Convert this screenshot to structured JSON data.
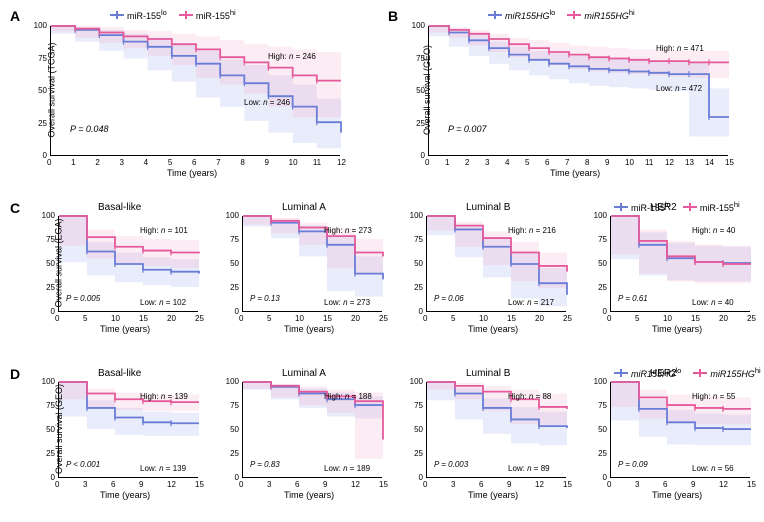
{
  "colors": {
    "lo": "#6a7dd6",
    "hi": "#e55a9b",
    "axis": "#000",
    "lo_ci": "#9aa8e8",
    "hi_ci": "#f2a7c8"
  },
  "legend": {
    "mir155_lo": "miR-155",
    "mir155_hi": "miR-155",
    "hg_lo": "miR155HG",
    "hg_hi": "miR155HG",
    "sup_lo": "lo",
    "sup_hi": "hi"
  },
  "A": {
    "label": "A",
    "ylabel": "Overall survival (TCGA)",
    "xlabel": "Time (years)",
    "p": "P = 0.048",
    "high": "High: n = 246",
    "low": "Low: n = 246",
    "xmax": 12,
    "xticks": [
      0,
      1,
      2,
      3,
      4,
      5,
      6,
      7,
      8,
      9,
      10,
      11,
      12
    ],
    "hi_y": [
      100,
      98,
      95,
      92,
      90,
      86,
      82,
      76,
      72,
      68,
      62,
      58,
      58
    ],
    "hi_u": [
      100,
      100,
      99,
      97,
      96,
      94,
      92,
      89,
      86,
      84,
      82,
      80,
      80
    ],
    "hi_l": [
      100,
      96,
      91,
      87,
      83,
      77,
      70,
      60,
      55,
      48,
      38,
      30,
      30
    ],
    "lo_y": [
      100,
      97,
      93,
      88,
      84,
      77,
      71,
      62,
      56,
      46,
      38,
      26,
      18
    ],
    "lo_u": [
      100,
      99,
      97,
      94,
      91,
      86,
      81,
      74,
      70,
      62,
      55,
      44,
      38
    ],
    "lo_l": [
      100,
      94,
      88,
      81,
      75,
      66,
      57,
      45,
      38,
      27,
      18,
      10,
      6
    ]
  },
  "B": {
    "label": "B",
    "ylabel": "Overall survival (GEO)",
    "xlabel": "Time (years)",
    "p": "P = 0.007",
    "high": "High: n = 471",
    "low": "Low: n = 472",
    "xmax": 15,
    "xticks": [
      0,
      1,
      2,
      3,
      4,
      5,
      6,
      7,
      8,
      9,
      10,
      11,
      12,
      13,
      14,
      15
    ],
    "hi_y": [
      100,
      97,
      94,
      90,
      86,
      83,
      80,
      78,
      76,
      75,
      74,
      73,
      73,
      72,
      72,
      72
    ],
    "hi_u": [
      100,
      99,
      97,
      94,
      91,
      89,
      87,
      85,
      84,
      83,
      82,
      82,
      81,
      81,
      81,
      81
    ],
    "hi_l": [
      100,
      95,
      91,
      85,
      80,
      76,
      73,
      70,
      67,
      65,
      64,
      63,
      62,
      61,
      60,
      60
    ],
    "lo_y": [
      100,
      95,
      89,
      83,
      78,
      74,
      71,
      69,
      67,
      66,
      65,
      64,
      63,
      63,
      30,
      30
    ],
    "lo_u": [
      100,
      97,
      93,
      88,
      84,
      81,
      79,
      77,
      76,
      75,
      74,
      73,
      73,
      72,
      52,
      52
    ],
    "lo_l": [
      100,
      92,
      84,
      77,
      71,
      66,
      62,
      59,
      56,
      54,
      53,
      52,
      51,
      50,
      15,
      15
    ]
  },
  "rowC": {
    "label": "C",
    "ylabel": "Overall survival (EGA)",
    "xlabel": "Time (years)",
    "xmax": 25,
    "xticks": [
      0,
      5,
      10,
      15,
      20,
      25
    ],
    "panels": [
      {
        "title": "Basal-like",
        "p": "P = 0.005",
        "high": "High: n = 101",
        "low": "Low: n = 102",
        "hi_y": [
          100,
          78,
          68,
          64,
          62,
          61,
          61
        ],
        "hi_u": [
          100,
          86,
          79,
          76,
          75,
          74,
          74
        ],
        "hi_l": [
          100,
          69,
          56,
          51,
          48,
          46,
          46
        ],
        "lo_y": [
          100,
          63,
          50,
          44,
          42,
          40,
          40
        ],
        "lo_u": [
          100,
          73,
          62,
          57,
          55,
          53,
          53
        ],
        "lo_l": [
          100,
          52,
          38,
          31,
          28,
          26,
          26
        ]
      },
      {
        "title": "Luminal A",
        "p": "P = 0.13",
        "high": "High: n = 273",
        "low": "Low: n = 273",
        "hi_y": [
          100,
          95,
          88,
          79,
          62,
          58,
          58
        ],
        "hi_u": [
          100,
          98,
          93,
          87,
          76,
          73,
          73
        ],
        "hi_l": [
          100,
          91,
          82,
          70,
          46,
          40,
          40
        ],
        "lo_y": [
          100,
          93,
          84,
          70,
          40,
          34,
          20
        ],
        "lo_u": [
          100,
          96,
          90,
          80,
          58,
          52,
          42
        ],
        "lo_l": [
          100,
          89,
          77,
          58,
          22,
          16,
          8
        ]
      },
      {
        "title": "Luminal B",
        "p": "P = 0.06",
        "high": "High: n = 216",
        "low": "Low: n = 217",
        "hi_y": [
          100,
          90,
          77,
          62,
          48,
          42,
          42
        ],
        "hi_u": [
          100,
          94,
          84,
          73,
          62,
          57,
          57
        ],
        "hi_l": [
          100,
          85,
          68,
          49,
          32,
          25,
          25
        ],
        "lo_y": [
          100,
          86,
          68,
          50,
          30,
          18,
          6
        ],
        "lo_u": [
          100,
          91,
          77,
          62,
          46,
          34,
          20
        ],
        "lo_l": [
          100,
          80,
          57,
          36,
          14,
          6,
          2
        ]
      },
      {
        "title": "HER2",
        "p": "P = 0.61",
        "high": "High: n = 40",
        "low": "Low: n = 40",
        "hi_y": [
          100,
          74,
          58,
          52,
          50,
          50,
          50
        ],
        "hi_u": [
          100,
          86,
          74,
          70,
          69,
          69,
          69
        ],
        "hi_l": [
          100,
          60,
          40,
          32,
          30,
          30,
          30
        ],
        "lo_y": [
          100,
          70,
          56,
          52,
          51,
          51,
          51
        ],
        "lo_u": [
          100,
          83,
          72,
          69,
          68,
          68,
          68
        ],
        "lo_l": [
          100,
          55,
          38,
          33,
          32,
          32,
          32
        ]
      }
    ]
  },
  "rowD": {
    "label": "D",
    "ylabel": "Overall survival (GEO)",
    "xlabel": "Time (years)",
    "xmax": 15,
    "xticks": [
      0,
      3,
      6,
      9,
      12,
      15
    ],
    "panels": [
      {
        "title": "Basal-like",
        "p": "P < 0.001",
        "high": "High: n = 139",
        "low": "Low: n = 139",
        "hi_y": [
          100,
          88,
          82,
          80,
          79,
          79
        ],
        "hi_u": [
          100,
          93,
          89,
          87,
          87,
          87
        ],
        "hi_l": [
          100,
          82,
          74,
          71,
          70,
          70
        ],
        "lo_y": [
          100,
          73,
          63,
          58,
          57,
          57
        ],
        "lo_u": [
          100,
          81,
          73,
          69,
          68,
          68
        ],
        "lo_l": [
          100,
          64,
          51,
          45,
          44,
          44
        ]
      },
      {
        "title": "Luminal A",
        "p": "P = 0.83",
        "high": "High: n = 188",
        "low": "Low: n = 189",
        "hi_y": [
          100,
          96,
          90,
          85,
          80,
          40
        ],
        "hi_u": [
          100,
          98,
          95,
          92,
          89,
          62
        ],
        "hi_l": [
          100,
          93,
          84,
          76,
          68,
          20
        ],
        "lo_y": [
          100,
          95,
          88,
          82,
          76,
          74
        ],
        "lo_u": [
          100,
          98,
          93,
          89,
          85,
          84
        ],
        "lo_l": [
          100,
          92,
          82,
          73,
          64,
          62
        ]
      },
      {
        "title": "Luminal B",
        "p": "P = 0.003",
        "high": "High: n = 88",
        "low": "Low: n = 89",
        "hi_y": [
          100,
          96,
          90,
          82,
          74,
          72
        ],
        "hi_u": [
          100,
          99,
          96,
          92,
          88,
          87
        ],
        "hi_l": [
          100,
          92,
          82,
          70,
          56,
          54
        ],
        "lo_y": [
          100,
          88,
          73,
          61,
          54,
          52
        ],
        "lo_u": [
          100,
          94,
          83,
          74,
          69,
          68
        ],
        "lo_l": [
          100,
          81,
          61,
          46,
          36,
          34
        ]
      },
      {
        "title": "HER2",
        "p": "P = 0.09",
        "high": "High: n = 55",
        "low": "Low: n = 56",
        "hi_y": [
          100,
          84,
          76,
          73,
          72,
          72
        ],
        "hi_u": [
          100,
          92,
          87,
          85,
          84,
          84
        ],
        "hi_l": [
          100,
          74,
          62,
          58,
          56,
          56
        ],
        "lo_y": [
          100,
          72,
          58,
          52,
          51,
          51
        ],
        "lo_u": [
          100,
          82,
          71,
          67,
          66,
          66
        ],
        "lo_l": [
          100,
          60,
          43,
          35,
          34,
          34
        ]
      }
    ]
  }
}
